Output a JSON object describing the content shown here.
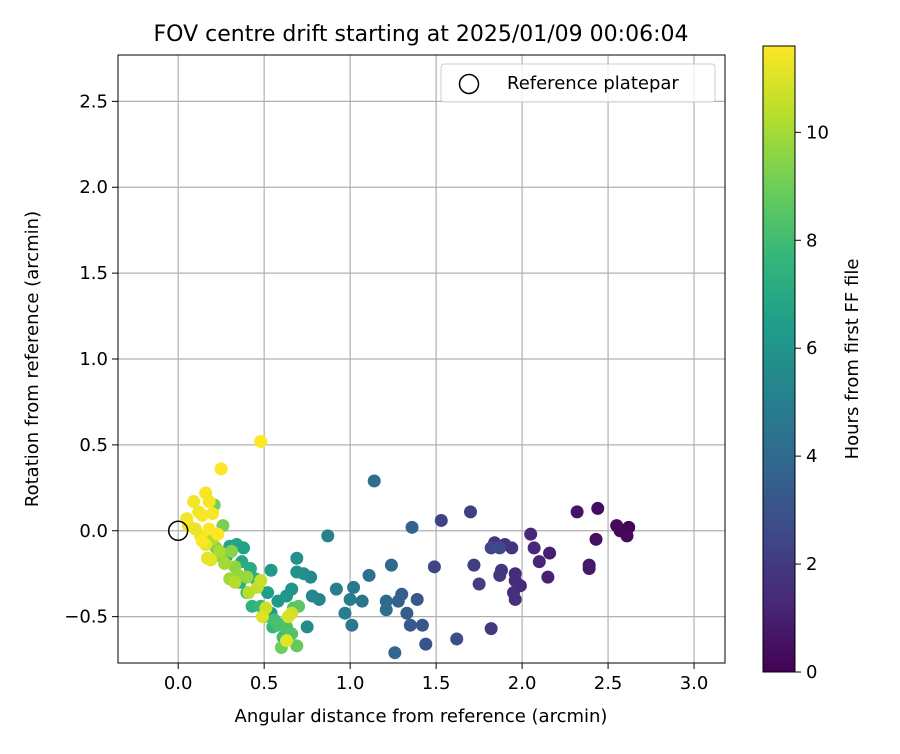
{
  "chart_data": {
    "type": "scatter",
    "title": "FOV centre drift starting at 2025/01/09 00:06:04",
    "xlabel": "Angular distance from reference (arcmin)",
    "ylabel": "Rotation from reference (arcmin)",
    "xlim": [
      -0.35,
      3.18
    ],
    "ylim": [
      -0.77,
      2.77
    ],
    "xticks": [
      0.0,
      0.5,
      1.0,
      1.5,
      2.0,
      2.5,
      3.0
    ],
    "xtick_labels": [
      "0.0",
      "0.5",
      "1.0",
      "1.5",
      "2.0",
      "2.5",
      "3.0"
    ],
    "yticks": [
      -0.5,
      0.0,
      0.5,
      1.0,
      1.5,
      2.0,
      2.5
    ],
    "ytick_labels": [
      "−0.5",
      "0.0",
      "0.5",
      "1.0",
      "1.5",
      "2.0",
      "2.5"
    ],
    "grid": true,
    "legend": {
      "position": "top-right",
      "entries": [
        "Reference platepar"
      ]
    },
    "reference_point": {
      "x": 0.0,
      "y": 0.0
    },
    "colorbar": {
      "label": "Hours from first FF file",
      "range": [
        0,
        11.6
      ],
      "ticks": [
        0,
        2,
        4,
        6,
        8,
        10
      ],
      "tick_labels": [
        "0",
        "2",
        "4",
        "6",
        "8",
        "10"
      ],
      "colormap": "viridis",
      "colormap_stops": [
        "#440154",
        "#482878",
        "#3e4989",
        "#31688e",
        "#26828e",
        "#1f9e89",
        "#35b779",
        "#6ece58",
        "#b5de2b",
        "#fde725"
      ]
    },
    "marker_color": "#000000",
    "points": [
      {
        "x": 2.62,
        "y": 0.02,
        "t": 0.1
      },
      {
        "x": 2.57,
        "y": 0.0,
        "t": 0.2
      },
      {
        "x": 2.55,
        "y": 0.03,
        "t": 0.3
      },
      {
        "x": 2.61,
        "y": -0.03,
        "t": 0.3
      },
      {
        "x": 2.44,
        "y": 0.13,
        "t": 0.4
      },
      {
        "x": 2.43,
        "y": -0.05,
        "t": 0.5
      },
      {
        "x": 2.32,
        "y": 0.11,
        "t": 0.6
      },
      {
        "x": 2.39,
        "y": -0.2,
        "t": 0.7
      },
      {
        "x": 2.39,
        "y": -0.22,
        "t": 0.8
      },
      {
        "x": 2.16,
        "y": -0.13,
        "t": 1.0
      },
      {
        "x": 2.15,
        "y": -0.27,
        "t": 1.1
      },
      {
        "x": 2.1,
        "y": -0.18,
        "t": 1.2
      },
      {
        "x": 2.07,
        "y": -0.1,
        "t": 1.3
      },
      {
        "x": 2.05,
        "y": -0.02,
        "t": 1.3
      },
      {
        "x": 1.99,
        "y": -0.32,
        "t": 1.4
      },
      {
        "x": 1.96,
        "y": -0.25,
        "t": 1.5
      },
      {
        "x": 1.96,
        "y": -0.29,
        "t": 1.5
      },
      {
        "x": 1.95,
        "y": -0.36,
        "t": 1.6
      },
      {
        "x": 1.96,
        "y": -0.4,
        "t": 1.6
      },
      {
        "x": 1.94,
        "y": -0.1,
        "t": 1.7
      },
      {
        "x": 1.9,
        "y": -0.08,
        "t": 1.8
      },
      {
        "x": 1.88,
        "y": -0.23,
        "t": 1.8
      },
      {
        "x": 1.87,
        "y": -0.26,
        "t": 1.9
      },
      {
        "x": 1.84,
        "y": -0.07,
        "t": 1.9
      },
      {
        "x": 1.82,
        "y": -0.57,
        "t": 2.0
      },
      {
        "x": 1.75,
        "y": -0.31,
        "t": 2.1
      },
      {
        "x": 1.72,
        "y": -0.2,
        "t": 2.2
      },
      {
        "x": 1.7,
        "y": 0.11,
        "t": 2.2
      },
      {
        "x": 1.53,
        "y": 0.06,
        "t": 2.3
      },
      {
        "x": 1.49,
        "y": -0.21,
        "t": 2.4
      },
      {
        "x": 1.82,
        "y": -0.1,
        "t": 2.5
      },
      {
        "x": 1.87,
        "y": -0.1,
        "t": 2.6
      },
      {
        "x": 1.62,
        "y": -0.63,
        "t": 2.8
      },
      {
        "x": 1.44,
        "y": -0.66,
        "t": 3.0
      },
      {
        "x": 1.42,
        "y": -0.55,
        "t": 3.1
      },
      {
        "x": 1.39,
        "y": -0.4,
        "t": 3.2
      },
      {
        "x": 1.35,
        "y": -0.55,
        "t": 3.3
      },
      {
        "x": 1.33,
        "y": -0.48,
        "t": 3.4
      },
      {
        "x": 1.3,
        "y": -0.37,
        "t": 3.5
      },
      {
        "x": 1.28,
        "y": -0.41,
        "t": 3.6
      },
      {
        "x": 1.36,
        "y": 0.02,
        "t": 3.7
      },
      {
        "x": 1.26,
        "y": -0.71,
        "t": 3.8
      },
      {
        "x": 1.24,
        "y": -0.2,
        "t": 3.9
      },
      {
        "x": 1.21,
        "y": -0.41,
        "t": 4.0
      },
      {
        "x": 1.21,
        "y": -0.46,
        "t": 4.1
      },
      {
        "x": 1.14,
        "y": 0.29,
        "t": 4.2
      },
      {
        "x": 1.11,
        "y": -0.26,
        "t": 4.3
      },
      {
        "x": 1.07,
        "y": -0.41,
        "t": 4.4
      },
      {
        "x": 1.01,
        "y": -0.55,
        "t": 4.6
      },
      {
        "x": 1.02,
        "y": -0.33,
        "t": 4.7
      },
      {
        "x": 1.0,
        "y": -0.4,
        "t": 4.8
      },
      {
        "x": 0.97,
        "y": -0.48,
        "t": 4.9
      },
      {
        "x": 0.92,
        "y": -0.34,
        "t": 5.0
      },
      {
        "x": 0.87,
        "y": -0.03,
        "t": 5.2
      },
      {
        "x": 0.82,
        "y": -0.4,
        "t": 5.3
      },
      {
        "x": 0.78,
        "y": -0.38,
        "t": 5.4
      },
      {
        "x": 0.77,
        "y": -0.27,
        "t": 5.5
      },
      {
        "x": 0.75,
        "y": -0.56,
        "t": 5.6
      },
      {
        "x": 0.73,
        "y": -0.25,
        "t": 5.7
      },
      {
        "x": 0.69,
        "y": -0.16,
        "t": 5.8
      },
      {
        "x": 0.69,
        "y": -0.24,
        "t": 5.9
      },
      {
        "x": 0.66,
        "y": -0.34,
        "t": 6.0
      },
      {
        "x": 0.63,
        "y": -0.38,
        "t": 6.1
      },
      {
        "x": 0.58,
        "y": -0.41,
        "t": 6.2
      },
      {
        "x": 0.54,
        "y": -0.23,
        "t": 6.3
      },
      {
        "x": 0.54,
        "y": -0.48,
        "t": 6.4
      },
      {
        "x": 0.52,
        "y": -0.36,
        "t": 6.5
      },
      {
        "x": 0.38,
        "y": -0.1,
        "t": 6.6
      },
      {
        "x": 0.34,
        "y": -0.08,
        "t": 6.7
      },
      {
        "x": 0.3,
        "y": -0.09,
        "t": 6.8
      },
      {
        "x": 0.28,
        "y": -0.15,
        "t": 6.9
      },
      {
        "x": 0.37,
        "y": -0.18,
        "t": 7.0
      },
      {
        "x": 0.42,
        "y": -0.22,
        "t": 7.1
      },
      {
        "x": 0.45,
        "y": -0.28,
        "t": 7.2
      },
      {
        "x": 0.36,
        "y": -0.3,
        "t": 7.3
      },
      {
        "x": 0.4,
        "y": -0.36,
        "t": 7.4
      },
      {
        "x": 0.43,
        "y": -0.44,
        "t": 7.5
      },
      {
        "x": 0.5,
        "y": -0.5,
        "t": 7.6
      },
      {
        "x": 0.55,
        "y": -0.56,
        "t": 7.7
      },
      {
        "x": 0.48,
        "y": -0.44,
        "t": 7.8
      },
      {
        "x": 0.62,
        "y": -0.54,
        "t": 7.9
      },
      {
        "x": 0.61,
        "y": -0.62,
        "t": 8.0
      },
      {
        "x": 0.56,
        "y": -0.52,
        "t": 8.1
      },
      {
        "x": 0.58,
        "y": -0.55,
        "t": 8.2
      },
      {
        "x": 0.63,
        "y": -0.56,
        "t": 8.3
      },
      {
        "x": 0.66,
        "y": -0.6,
        "t": 8.4
      },
      {
        "x": 0.67,
        "y": -0.45,
        "t": 8.5
      },
      {
        "x": 0.7,
        "y": -0.44,
        "t": 8.6
      },
      {
        "x": 0.69,
        "y": -0.67,
        "t": 8.8
      },
      {
        "x": 0.6,
        "y": -0.68,
        "t": 9.0
      },
      {
        "x": 0.21,
        "y": 0.15,
        "t": 9.1
      },
      {
        "x": 0.26,
        "y": 0.03,
        "t": 9.2
      },
      {
        "x": 0.22,
        "y": -0.1,
        "t": 9.3
      },
      {
        "x": 0.25,
        "y": -0.15,
        "t": 9.4
      },
      {
        "x": 0.31,
        "y": -0.12,
        "t": 9.5
      },
      {
        "x": 0.33,
        "y": -0.21,
        "t": 9.6
      },
      {
        "x": 0.35,
        "y": -0.26,
        "t": 9.7
      },
      {
        "x": 0.4,
        "y": -0.27,
        "t": 9.8
      },
      {
        "x": 0.3,
        "y": -0.28,
        "t": 9.9
      },
      {
        "x": 0.27,
        "y": -0.19,
        "t": 10.0
      },
      {
        "x": 0.24,
        "y": -0.12,
        "t": 10.1
      },
      {
        "x": 0.2,
        "y": -0.05,
        "t": 10.2
      },
      {
        "x": 0.33,
        "y": -0.3,
        "t": 10.3
      },
      {
        "x": 0.41,
        "y": -0.36,
        "t": 10.4
      },
      {
        "x": 0.46,
        "y": -0.33,
        "t": 10.5
      },
      {
        "x": 0.48,
        "y": -0.29,
        "t": 10.6
      },
      {
        "x": 0.51,
        "y": -0.45,
        "t": 10.7
      },
      {
        "x": 0.66,
        "y": -0.48,
        "t": 10.8
      },
      {
        "x": 0.64,
        "y": -0.5,
        "t": 10.9
      },
      {
        "x": 0.49,
        "y": -0.5,
        "t": 11.0
      },
      {
        "x": 0.63,
        "y": -0.64,
        "t": 11.1
      },
      {
        "x": 0.19,
        "y": -0.17,
        "t": 11.1
      },
      {
        "x": 0.17,
        "y": -0.16,
        "t": 11.2
      },
      {
        "x": 0.16,
        "y": -0.08,
        "t": 11.2
      },
      {
        "x": 0.13,
        "y": -0.03,
        "t": 11.3
      },
      {
        "x": 0.1,
        "y": 0.01,
        "t": 11.3
      },
      {
        "x": 0.06,
        "y": 0.03,
        "t": 11.3
      },
      {
        "x": 0.05,
        "y": 0.07,
        "t": 11.4
      },
      {
        "x": 0.09,
        "y": 0.17,
        "t": 11.4
      },
      {
        "x": 0.12,
        "y": 0.11,
        "t": 11.4
      },
      {
        "x": 0.16,
        "y": 0.22,
        "t": 11.5
      },
      {
        "x": 0.18,
        "y": 0.17,
        "t": 11.5
      },
      {
        "x": 0.14,
        "y": 0.09,
        "t": 11.5
      },
      {
        "x": 0.2,
        "y": 0.1,
        "t": 11.5
      },
      {
        "x": 0.25,
        "y": 0.36,
        "t": 11.6
      },
      {
        "x": 0.48,
        "y": 0.52,
        "t": 11.6
      },
      {
        "x": 0.14,
        "y": -0.06,
        "t": 11.6
      },
      {
        "x": 0.18,
        "y": 0.01,
        "t": 11.6
      },
      {
        "x": 0.23,
        "y": -0.02,
        "t": 11.6
      }
    ]
  }
}
